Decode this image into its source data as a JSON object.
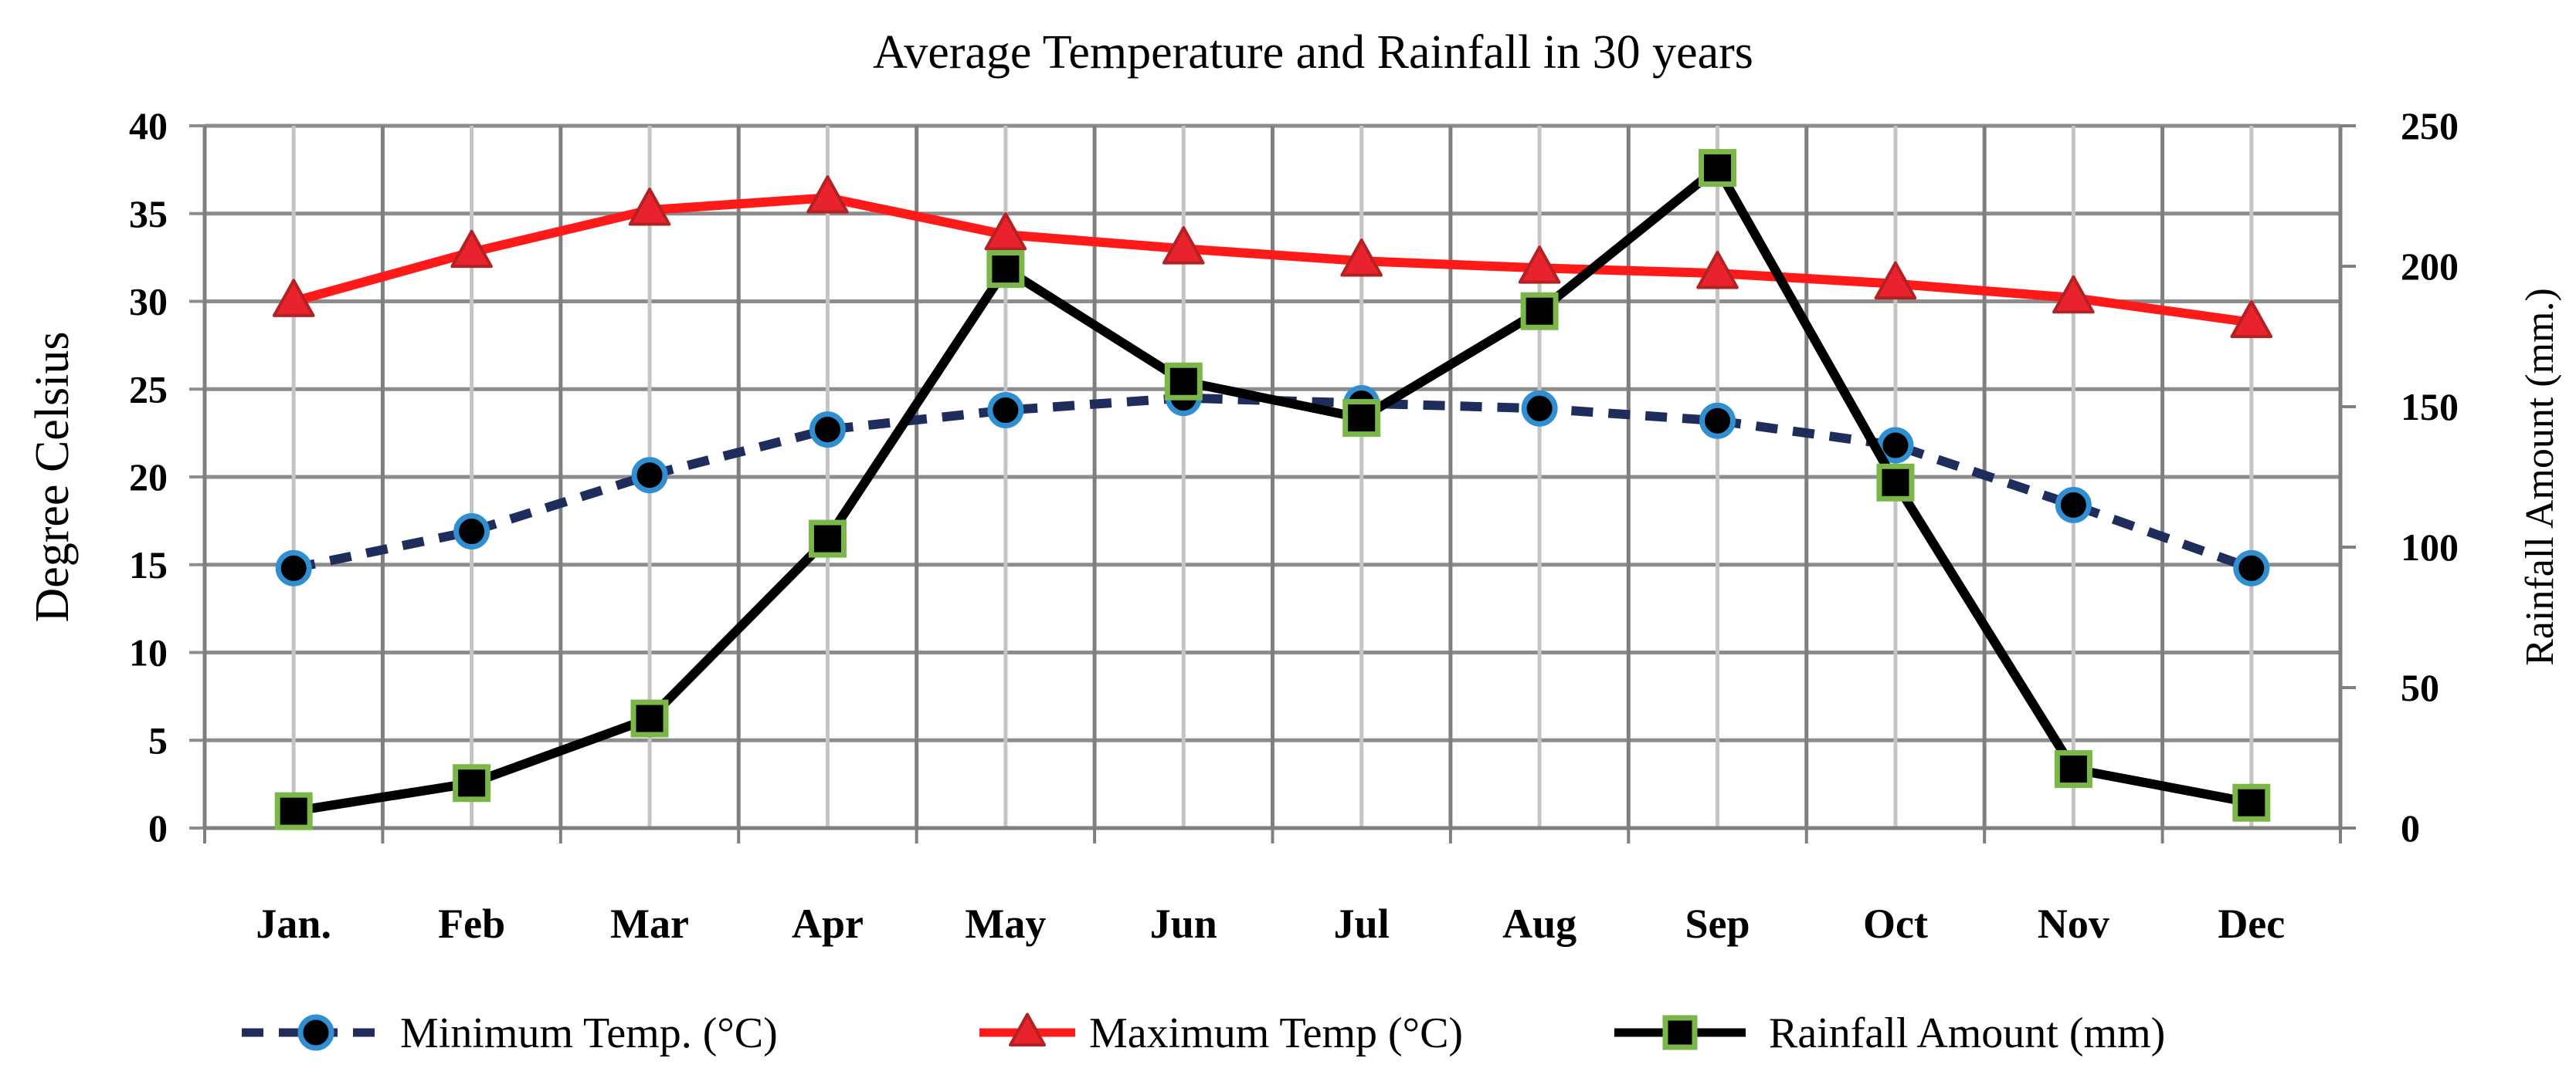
{
  "chart_data": {
    "type": "line",
    "title": "Average Temperature and Rainfall in 30 years",
    "categories": [
      "Jan.",
      "Feb",
      "Mar",
      "Apr",
      "May",
      "Jun",
      "Jul",
      "Aug",
      "Sep",
      "Oct",
      "Nov",
      "Dec"
    ],
    "ylabel": "Degree Celsius",
    "y2label": "Rainfall Amount (mm.)",
    "ylim": [
      0,
      40
    ],
    "y2lim": [
      0,
      250
    ],
    "yticks": [
      "0",
      "5",
      "10",
      "15",
      "20",
      "25",
      "30",
      "35",
      "40"
    ],
    "y2ticks": [
      "0",
      "50",
      "100",
      "150",
      "200",
      "250"
    ],
    "grid": true,
    "legend_position": "bottom",
    "series": [
      {
        "name": "Minimum Temp. (°C)",
        "axis": "left",
        "style": "dashed",
        "marker": "circle",
        "line_color": "#1f2d5c",
        "marker_fill": "#000000",
        "marker_edge": "#2f8fd0",
        "values": [
          14.8,
          16.9,
          20.1,
          22.7,
          23.8,
          24.5,
          24.2,
          23.9,
          23.2,
          21.8,
          18.4,
          14.8
        ]
      },
      {
        "name": "Maximum Temp (°C)",
        "axis": "left",
        "style": "solid",
        "marker": "triangle",
        "line_color": "#ff1a1a",
        "marker_fill": "#e8232d",
        "marker_edge": "#b22222",
        "values": [
          30.0,
          32.8,
          35.2,
          35.9,
          33.8,
          33.0,
          32.3,
          31.9,
          31.6,
          31.0,
          30.2,
          28.8
        ]
      },
      {
        "name": "Rainfall Amount (mm)",
        "axis": "right",
        "style": "solid",
        "marker": "square",
        "line_color": "#000000",
        "marker_fill": "#000000",
        "marker_edge": "#7ab648",
        "values": [
          6,
          16,
          39,
          103,
          199,
          159,
          146,
          184,
          235,
          123,
          21,
          9
        ]
      }
    ]
  }
}
